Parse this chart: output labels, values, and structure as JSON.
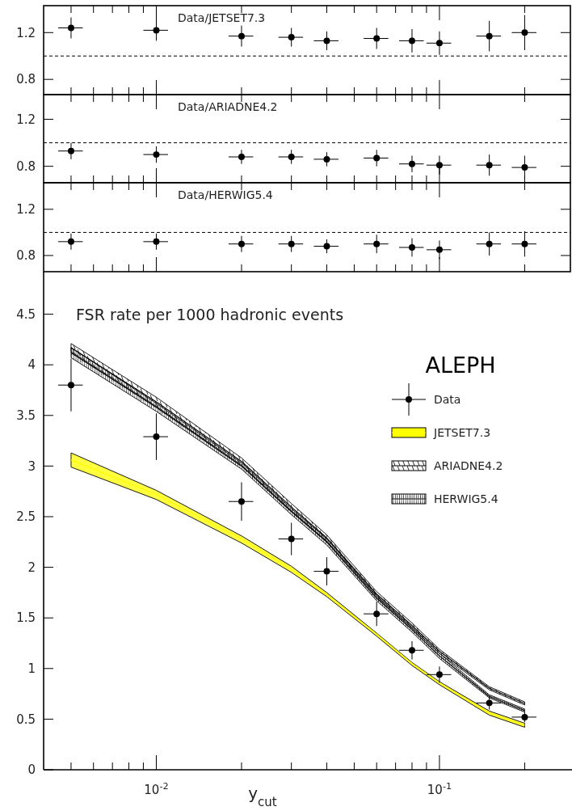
{
  "chart_data": [
    {
      "type": "scatter",
      "title": "Data/JETSET7.3",
      "marker": "circle",
      "log": "x",
      "tick_labels": "y",
      "x": [
        0.005,
        0.01,
        0.02,
        0.03,
        0.04,
        0.06,
        0.08,
        0.1,
        0.15,
        0.2
      ],
      "series": [
        {
          "color": "#000000",
          "values": [
            1.24,
            1.22,
            1.17,
            1.16,
            1.13,
            1.15,
            1.13,
            1.11,
            1.17,
            1.2
          ],
          "errors": [
            0.09,
            0.09,
            0.09,
            0.08,
            0.08,
            0.09,
            0.1,
            0.1,
            0.13,
            0.15
          ],
          "xerrors": [
            [
              0.0045,
              0.0055
            ],
            [
              0.009,
              0.011
            ],
            [
              0.018,
              0.022
            ],
            [
              0.027,
              0.033
            ],
            [
              0.036,
              0.044
            ],
            [
              0.054,
              0.066
            ],
            [
              0.072,
              0.088
            ],
            [
              0.09,
              0.11
            ],
            [
              0.135,
              0.165
            ],
            [
              0.18,
              0.22
            ]
          ]
        }
      ],
      "xlim": [
        0.004,
        0.29
      ],
      "xticks": [
        {
          "value": 0.005,
          "label": null
        },
        {
          "value": 0.006,
          "label": null
        },
        {
          "value": 0.007,
          "label": null
        },
        {
          "value": 0.008,
          "label": null
        },
        {
          "value": 0.009,
          "label": null
        },
        {
          "value": 0.01,
          "label": null
        },
        {
          "value": 0.02,
          "label": null
        },
        {
          "value": 0.03,
          "label": null
        },
        {
          "value": 0.04,
          "label": null
        },
        {
          "value": 0.05,
          "label": null
        },
        {
          "value": 0.06,
          "label": null
        },
        {
          "value": 0.07,
          "label": null
        },
        {
          "value": 0.08,
          "label": null
        },
        {
          "value": 0.09,
          "label": null
        },
        {
          "value": 0.1,
          "label": null
        },
        {
          "value": 0.2,
          "label": null
        }
      ],
      "ylim": [
        0.67,
        1.43
      ],
      "yticks": [
        0.8,
        1.2
      ],
      "ref_lines": [
        {
          "axis": "y",
          "value": 1,
          "label": null,
          "line_style": "dashed"
        }
      ]
    },
    {
      "type": "scatter",
      "title": "Data/ARIADNE4.2",
      "marker": "circle",
      "log": "x",
      "tick_labels": "y",
      "x": [
        0.005,
        0.01,
        0.02,
        0.03,
        0.04,
        0.06,
        0.08,
        0.1,
        0.15,
        0.2
      ],
      "series": [
        {
          "color": "#000000",
          "values": [
            0.93,
            0.9,
            0.88,
            0.88,
            0.86,
            0.87,
            0.82,
            0.81,
            0.81,
            0.79
          ],
          "errors": [
            0.07,
            0.07,
            0.06,
            0.06,
            0.06,
            0.07,
            0.07,
            0.08,
            0.09,
            0.1
          ],
          "xerrors": [
            [
              0.0045,
              0.0055
            ],
            [
              0.009,
              0.011
            ],
            [
              0.018,
              0.022
            ],
            [
              0.027,
              0.033
            ],
            [
              0.036,
              0.044
            ],
            [
              0.054,
              0.066
            ],
            [
              0.072,
              0.088
            ],
            [
              0.09,
              0.11
            ],
            [
              0.135,
              0.165
            ],
            [
              0.18,
              0.22
            ]
          ]
        }
      ],
      "xlim": [
        0.004,
        0.29
      ],
      "xticks": [
        {
          "value": 0.005,
          "label": null
        },
        {
          "value": 0.006,
          "label": null
        },
        {
          "value": 0.007,
          "label": null
        },
        {
          "value": 0.008,
          "label": null
        },
        {
          "value": 0.009,
          "label": null
        },
        {
          "value": 0.01,
          "label": null
        },
        {
          "value": 0.02,
          "label": null
        },
        {
          "value": 0.03,
          "label": null
        },
        {
          "value": 0.04,
          "label": null
        },
        {
          "value": 0.05,
          "label": null
        },
        {
          "value": 0.06,
          "label": null
        },
        {
          "value": 0.07,
          "label": null
        },
        {
          "value": 0.08,
          "label": null
        },
        {
          "value": 0.09,
          "label": null
        },
        {
          "value": 0.1,
          "label": null
        },
        {
          "value": 0.2,
          "label": null
        }
      ],
      "ylim": [
        0.66,
        1.41
      ],
      "yticks": [
        0.8,
        1.2
      ],
      "ref_lines": [
        {
          "axis": "y",
          "value": 1,
          "label": null,
          "line_style": "dashed"
        }
      ]
    },
    {
      "type": "scatter",
      "title": "Data/HERWIG5.4",
      "marker": "circle",
      "log": "x",
      "tick_labels": "y",
      "x": [
        0.005,
        0.01,
        0.02,
        0.03,
        0.04,
        0.06,
        0.08,
        0.1,
        0.15,
        0.2
      ],
      "series": [
        {
          "color": "#000000",
          "values": [
            0.92,
            0.92,
            0.9,
            0.9,
            0.88,
            0.9,
            0.87,
            0.85,
            0.9,
            0.9
          ],
          "errors": [
            0.07,
            0.07,
            0.07,
            0.07,
            0.06,
            0.08,
            0.08,
            0.08,
            0.1,
            0.11
          ],
          "xerrors": [
            [
              0.0045,
              0.0055
            ],
            [
              0.009,
              0.011
            ],
            [
              0.018,
              0.022
            ],
            [
              0.027,
              0.033
            ],
            [
              0.036,
              0.044
            ],
            [
              0.054,
              0.066
            ],
            [
              0.072,
              0.088
            ],
            [
              0.09,
              0.11
            ],
            [
              0.135,
              0.165
            ],
            [
              0.18,
              0.22
            ]
          ]
        }
      ],
      "xlim": [
        0.004,
        0.29
      ],
      "xticks": [
        {
          "value": 0.005,
          "label": null
        },
        {
          "value": 0.006,
          "label": null
        },
        {
          "value": 0.007,
          "label": null
        },
        {
          "value": 0.008,
          "label": null
        },
        {
          "value": 0.009,
          "label": null
        },
        {
          "value": 0.01,
          "label": null
        },
        {
          "value": 0.02,
          "label": null
        },
        {
          "value": 0.03,
          "label": null
        },
        {
          "value": 0.04,
          "label": null
        },
        {
          "value": 0.05,
          "label": null
        },
        {
          "value": 0.06,
          "label": null
        },
        {
          "value": 0.07,
          "label": null
        },
        {
          "value": 0.08,
          "label": null
        },
        {
          "value": 0.09,
          "label": null
        },
        {
          "value": 0.1,
          "label": null
        },
        {
          "value": 0.2,
          "label": null
        }
      ],
      "ylim": [
        0.66,
        1.43
      ],
      "yticks": [
        0.8,
        1.2
      ],
      "ref_lines": [
        {
          "axis": "y",
          "value": 1,
          "label": null,
          "line_style": "dashed"
        }
      ]
    },
    {
      "type": "scatter",
      "title": "FSR rate per 1000 hadronic events",
      "xlabel": "y$_{cut}$",
      "log": "x",
      "legend": "right",
      "annotations": [
        "ALEPH"
      ],
      "x": [
        0.005,
        0.01,
        0.02,
        0.03,
        0.04,
        0.06,
        0.08,
        0.1,
        0.15,
        0.2
      ],
      "series": [
        {
          "name": "Data",
          "marker": "circle",
          "color": "#000000",
          "values": [
            3.8,
            3.29,
            2.65,
            2.28,
            1.96,
            1.54,
            1.18,
            0.94,
            0.66,
            0.52
          ],
          "errors": [
            0.26,
            0.23,
            0.19,
            0.16,
            0.14,
            0.12,
            0.09,
            0.08,
            0.065,
            0.05
          ],
          "xerrors": [
            [
              0.0045,
              0.0055
            ],
            [
              0.009,
              0.011
            ],
            [
              0.018,
              0.022
            ],
            [
              0.027,
              0.033
            ],
            [
              0.036,
              0.044
            ],
            [
              0.054,
              0.066
            ],
            [
              0.072,
              0.088
            ],
            [
              0.09,
              0.11
            ],
            [
              0.135,
              0.165
            ],
            [
              0.18,
              0.22
            ]
          ]
        },
        {
          "name": "JETSET7.3",
          "type": "line",
          "color": "#ffff00",
          "values": [
            3.06,
            2.72,
            2.28,
            1.98,
            1.73,
            1.34,
            1.05,
            0.86,
            0.56,
            0.44
          ],
          "lower": [
            2.99,
            2.67,
            2.24,
            1.95,
            1.71,
            1.32,
            1.03,
            0.84,
            0.54,
            0.42
          ],
          "upper": [
            3.13,
            2.76,
            2.31,
            2.01,
            1.75,
            1.35,
            1.06,
            0.87,
            0.58,
            0.46
          ]
        },
        {
          "name": "ARIADNE4.2",
          "type": "line",
          "color": "#000000",
          "values": [
            4.17,
            3.635,
            3.045,
            2.595,
            2.29,
            1.735,
            1.425,
            1.17,
            0.805,
            0.655
          ],
          "lower": [
            4.13,
            3.59,
            3.01,
            2.56,
            2.26,
            1.71,
            1.4,
            1.15,
            0.79,
            0.64
          ],
          "upper": [
            4.21,
            3.68,
            3.08,
            2.63,
            2.32,
            1.76,
            1.45,
            1.19,
            0.82,
            0.67
          ]
        },
        {
          "name": "HERWIG5.4",
          "type": "line",
          "color": "#000000",
          "values": [
            4.12,
            3.58,
            3.0,
            2.55,
            2.25,
            1.695,
            1.385,
            1.125,
            0.725,
            0.585
          ],
          "lower": [
            4.07,
            3.54,
            2.97,
            2.52,
            2.22,
            1.67,
            1.36,
            1.1,
            0.71,
            0.57
          ],
          "upper": [
            4.17,
            3.62,
            3.03,
            2.58,
            2.28,
            1.72,
            1.41,
            1.15,
            0.74,
            0.6
          ]
        }
      ],
      "xlim": [
        0.004,
        0.29
      ],
      "xticks": [
        {
          "value": 0.005,
          "label": null
        },
        {
          "value": 0.006,
          "label": null
        },
        {
          "value": 0.007,
          "label": null
        },
        {
          "value": 0.008,
          "label": null
        },
        {
          "value": 0.009,
          "label": null
        },
        {
          "value": 0.01,
          "label": "10$^{-2}$"
        },
        {
          "value": 0.02,
          "label": null
        },
        {
          "value": 0.03,
          "label": null
        },
        {
          "value": 0.04,
          "label": null
        },
        {
          "value": 0.05,
          "label": null
        },
        {
          "value": 0.06,
          "label": null
        },
        {
          "value": 0.07,
          "label": null
        },
        {
          "value": 0.08,
          "label": null
        },
        {
          "value": 0.09,
          "label": null
        },
        {
          "value": 0.1,
          "label": "10$^{-1}$"
        },
        {
          "value": 0.2,
          "label": null
        }
      ],
      "ylim": [
        0,
        4.92
      ],
      "yticks": [
        0,
        0.5,
        1,
        1.5,
        2,
        2.5,
        3,
        3.5,
        4,
        4.5
      ]
    }
  ]
}
